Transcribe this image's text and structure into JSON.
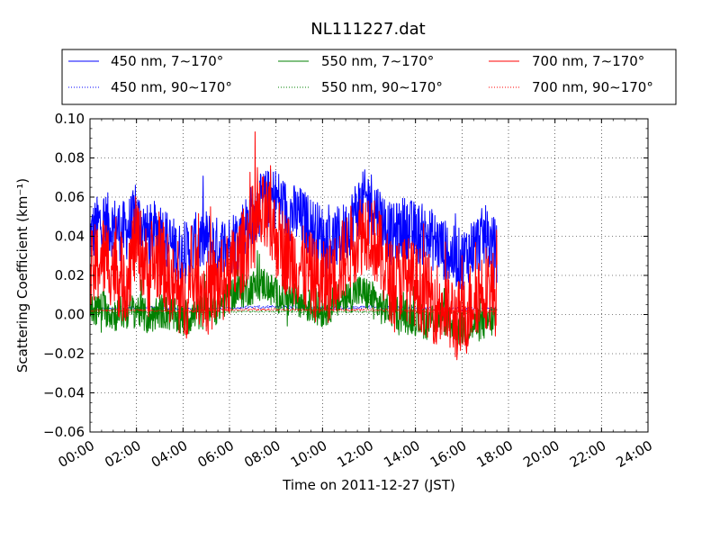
{
  "chart_data": {
    "type": "line",
    "title": "NL111227.dat",
    "xlabel": "Time on 2011-12-27 (JST)",
    "ylabel": "Scattering Coefficient (km⁻¹)",
    "xlim": [
      0,
      24
    ],
    "ylim": [
      -0.06,
      0.1
    ],
    "xticks": [
      "00:00",
      "02:00",
      "04:00",
      "06:00",
      "08:00",
      "10:00",
      "12:00",
      "14:00",
      "16:00",
      "18:00",
      "20:00",
      "22:00",
      "24:00"
    ],
    "yticks": [
      "−0.06",
      "−0.04",
      "−0.02",
      "0.00",
      "0.02",
      "0.04",
      "0.06",
      "0.08",
      "0.10"
    ],
    "grid": true,
    "legend_position": "top, above plot",
    "series": [
      {
        "name": "450 nm, 7∼170°",
        "color": "#0000ff",
        "style": "solid",
        "x": [
          0.0,
          0.5,
          1.0,
          1.5,
          2.0,
          2.5,
          3.0,
          3.5,
          4.0,
          4.5,
          5.0,
          5.5,
          6.0,
          6.5,
          7.0,
          7.5,
          8.0,
          8.5,
          9.0,
          9.5,
          10.0,
          10.5,
          11.0,
          11.5,
          12.0,
          12.5,
          13.0,
          13.5,
          14.0,
          14.5,
          15.0,
          15.5,
          16.0,
          16.5,
          17.0,
          17.5
        ],
        "y": [
          0.04,
          0.048,
          0.045,
          0.042,
          0.05,
          0.04,
          0.044,
          0.035,
          0.03,
          0.036,
          0.038,
          0.034,
          0.036,
          0.042,
          0.052,
          0.058,
          0.06,
          0.052,
          0.05,
          0.045,
          0.04,
          0.038,
          0.042,
          0.055,
          0.06,
          0.05,
          0.04,
          0.045,
          0.042,
          0.04,
          0.036,
          0.03,
          0.028,
          0.035,
          0.04,
          0.032
        ]
      },
      {
        "name": "450 nm, 90∼170°",
        "color": "#0000ff",
        "style": "dotted",
        "x": [
          0.0,
          1.0,
          2.0,
          3.0,
          4.0,
          5.0,
          6.0,
          7.0,
          8.0,
          9.0,
          10.0,
          11.0,
          12.0,
          13.0,
          14.0,
          15.0,
          16.0,
          17.0,
          17.5
        ],
        "y": [
          0.003,
          0.0032,
          0.0035,
          0.0031,
          0.0028,
          0.003,
          0.0032,
          0.0038,
          0.004,
          0.0036,
          0.0033,
          0.0035,
          0.004,
          0.0034,
          0.0032,
          0.003,
          0.0028,
          0.0031,
          0.0029
        ]
      },
      {
        "name": "550 nm, 7∼170°",
        "color": "#008000",
        "style": "solid",
        "x": [
          0.0,
          0.5,
          1.0,
          1.5,
          2.0,
          2.5,
          3.0,
          3.5,
          4.0,
          4.5,
          5.0,
          5.5,
          6.0,
          6.5,
          7.0,
          7.5,
          8.0,
          8.5,
          9.0,
          9.5,
          10.0,
          10.5,
          11.0,
          11.5,
          12.0,
          12.5,
          13.0,
          13.5,
          14.0,
          14.5,
          15.0,
          15.5,
          16.0,
          16.5,
          17.0,
          17.5
        ],
        "y": [
          0.002,
          0.004,
          0.0,
          0.001,
          0.003,
          -0.002,
          0.002,
          0.0,
          -0.003,
          0.0,
          0.002,
          0.004,
          0.01,
          0.012,
          0.014,
          0.016,
          0.01,
          0.008,
          0.006,
          0.004,
          0.002,
          0.006,
          0.008,
          0.012,
          0.01,
          0.004,
          0.002,
          0.0,
          -0.002,
          -0.004,
          0.0,
          -0.004,
          -0.008,
          -0.006,
          -0.004,
          -0.002
        ]
      },
      {
        "name": "550 nm, 90∼170°",
        "color": "#008000",
        "style": "dotted",
        "x": [
          0.0,
          2.0,
          4.0,
          6.0,
          8.0,
          10.0,
          12.0,
          14.0,
          16.0,
          17.5
        ],
        "y": [
          0.001,
          0.0012,
          0.001,
          0.0014,
          0.0016,
          0.0013,
          0.0015,
          0.0011,
          0.0009,
          0.001
        ]
      },
      {
        "name": "700 nm, 7∼170°",
        "color": "#ff0000",
        "style": "solid",
        "x": [
          0.0,
          0.5,
          1.0,
          1.5,
          2.0,
          2.5,
          3.0,
          3.5,
          4.0,
          4.5,
          5.0,
          5.5,
          6.0,
          6.5,
          7.0,
          7.5,
          8.0,
          8.5,
          9.0,
          9.5,
          10.0,
          10.5,
          11.0,
          11.5,
          12.0,
          12.5,
          13.0,
          13.5,
          14.0,
          14.5,
          15.0,
          15.5,
          16.0,
          16.5,
          17.0,
          17.5
        ],
        "y": [
          0.02,
          0.03,
          0.025,
          0.015,
          0.04,
          0.02,
          0.03,
          0.015,
          0.005,
          0.02,
          0.01,
          0.015,
          0.02,
          0.03,
          0.045,
          0.05,
          0.04,
          0.03,
          0.025,
          0.02,
          0.015,
          0.02,
          0.03,
          0.04,
          0.045,
          0.03,
          0.015,
          0.02,
          0.015,
          0.01,
          0.005,
          0.0,
          -0.005,
          0.01,
          0.015,
          0.01
        ]
      },
      {
        "name": "700 nm, 90∼170°",
        "color": "#ff0000",
        "style": "dotted",
        "x": [
          0.0,
          2.0,
          4.0,
          6.0,
          8.0,
          10.0,
          12.0,
          14.0,
          16.0,
          17.5
        ],
        "y": [
          0.002,
          0.0022,
          0.0018,
          0.0024,
          0.0026,
          0.0022,
          0.0025,
          0.0019,
          0.0016,
          0.0018
        ]
      }
    ]
  }
}
